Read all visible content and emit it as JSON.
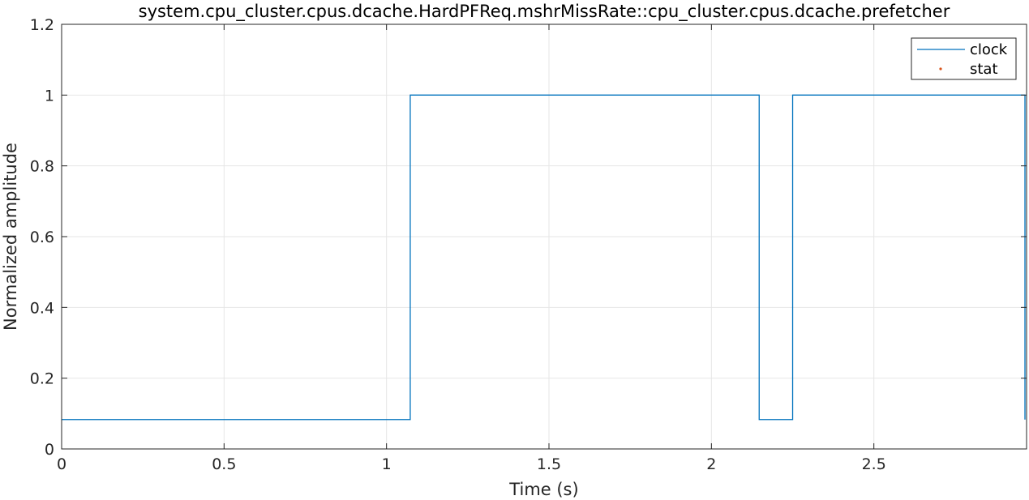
{
  "colors": {
    "clock": "#0072BD",
    "stat": "#D95319",
    "grid": "#e6e6e6",
    "axis": "#262626"
  },
  "chart_data": {
    "type": "line",
    "title": "system.cpu_cluster.cpus.dcache.HardPFReq.mshrMissRate::cpu_cluster.cpus.dcache.prefetcher",
    "xlabel": "Time (s)",
    "ylabel": "Normalized amplitude",
    "xlim": [
      0,
      2.97
    ],
    "ylim": [
      0,
      1.2
    ],
    "xticks": [
      0,
      0.5,
      1,
      1.5,
      2,
      2.5
    ],
    "xtick_labels": [
      "0",
      "0.5",
      "1",
      "1.5",
      "2",
      "2.5"
    ],
    "yticks": [
      0,
      0.2,
      0.4,
      0.6,
      0.8,
      1,
      1.2
    ],
    "ytick_labels": [
      "0",
      "0.2",
      "0.4",
      "0.6",
      "0.8",
      "1",
      "1.2"
    ],
    "grid": true,
    "legend_position": "top-right",
    "series": [
      {
        "name": "clock",
        "style": "step-line",
        "x": [
          0,
          1.073,
          1.073,
          2.147,
          2.147,
          2.25,
          2.25,
          2.965,
          2.965
        ],
        "y": [
          0.083,
          0.083,
          1,
          1,
          0.083,
          0.083,
          1,
          1,
          0.083
        ]
      },
      {
        "name": "stat",
        "style": "point-marker",
        "x": [],
        "y": []
      }
    ]
  }
}
